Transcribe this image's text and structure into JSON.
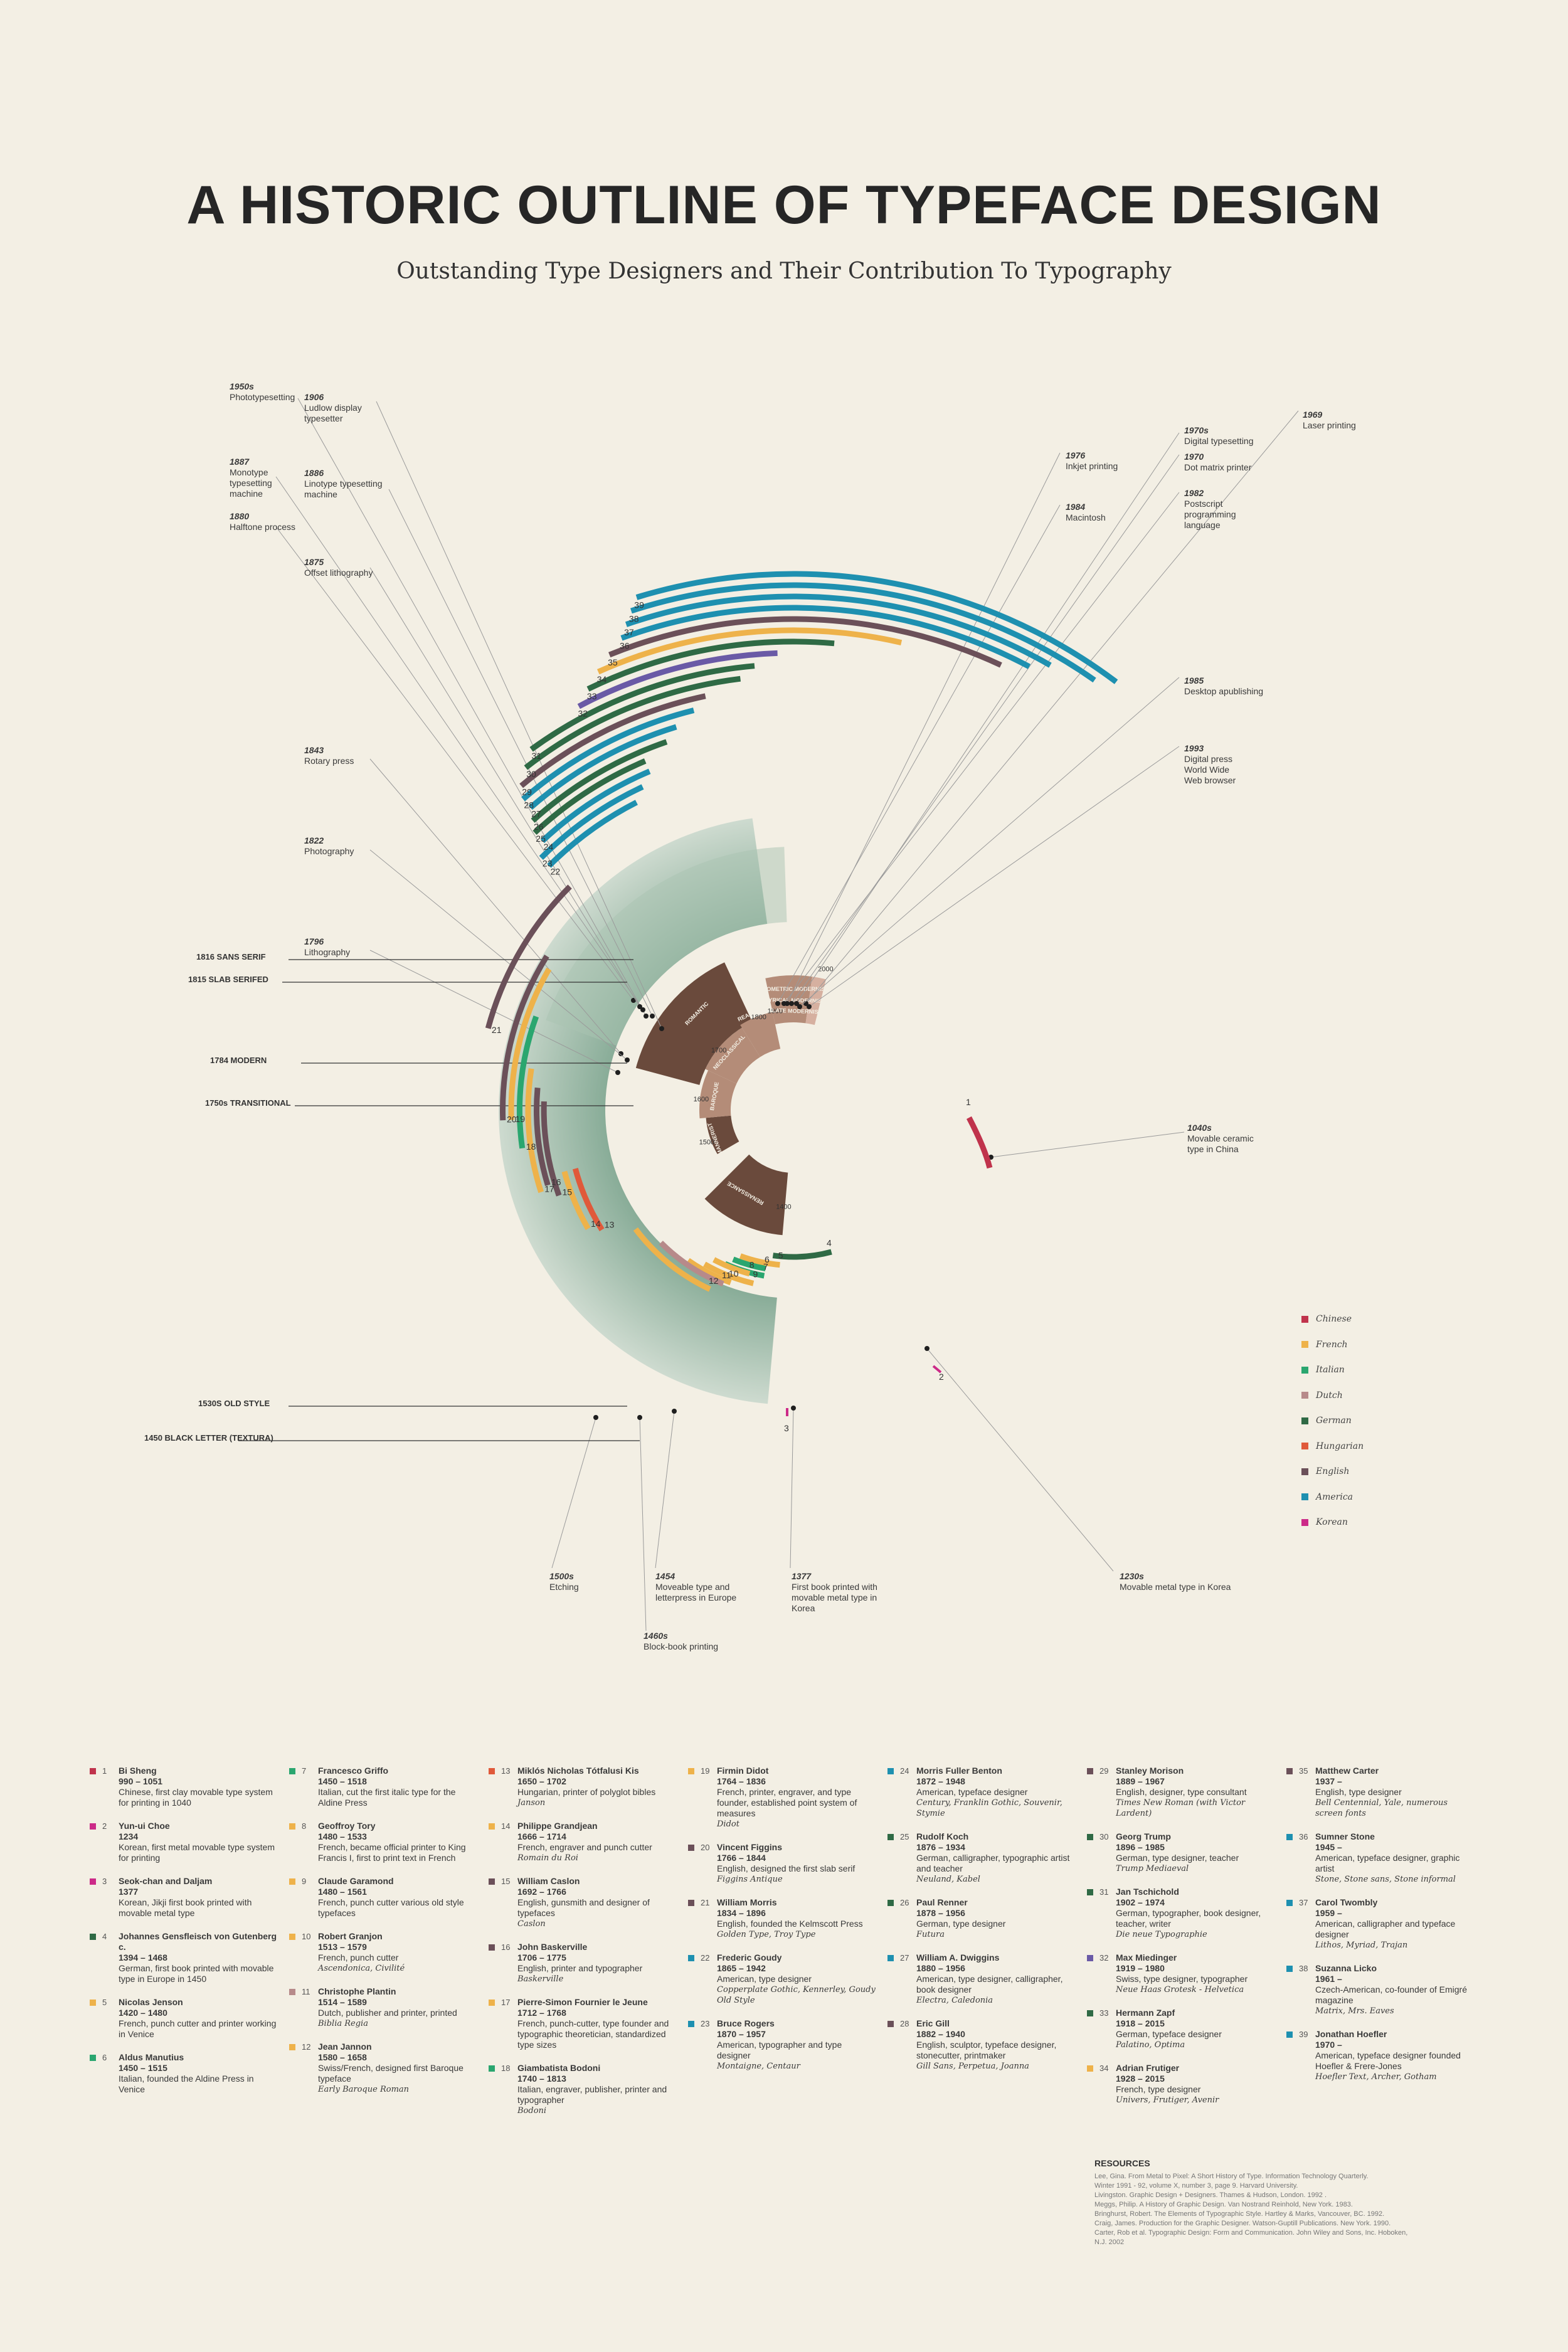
{
  "header": {
    "title": "A HISTORIC OUTLINE OF TYPEFACE DESIGN",
    "subtitle": "Outstanding Type Designers and Their Contribution To Typography"
  },
  "colors": {
    "Chinese": "#c0334c",
    "French": "#eeb24a",
    "Italian": "#2aa66f",
    "Dutch": "#b78a8a",
    "German": "#2f6a45",
    "Hungarian": "#e0593a",
    "English": "#6b5059",
    "America": "#1e90b0",
    "Korean": "#cc2a88"
  },
  "legend": [
    {
      "label": "Chinese",
      "key": "Chinese"
    },
    {
      "label": "French",
      "key": "French"
    },
    {
      "label": "Italian",
      "key": "Italian"
    },
    {
      "label": "Dutch",
      "key": "Dutch"
    },
    {
      "label": "German",
      "key": "German"
    },
    {
      "label": "Hungarian",
      "key": "Hungarian"
    },
    {
      "label": "English",
      "key": "English"
    },
    {
      "label": "America",
      "key": "America"
    },
    {
      "label": "Korean",
      "key": "Korean"
    }
  ],
  "style_labels": [
    "1816 SANS SERIF",
    "1815 SLAB SERIFED",
    "1784 MODERN",
    "1750s TRANSITIONAL",
    "1530S OLD STYLE",
    "1450 BLACK LETTER (TEXTURA)"
  ],
  "periods": [
    "ROMANTIC",
    "REALIST",
    "NEOCLASSICAL",
    "BAROQUE",
    "MANNERIST",
    "RENAISSANCE",
    "GEOMETRIC MODERNIST",
    "LYRICAL MODERNIST",
    "LATE MODERNIST"
  ],
  "years": [
    "2000",
    "1900",
    "1800",
    "1700",
    "1600",
    "1500",
    "1400"
  ],
  "annotations": [
    {
      "year": "1950s",
      "text": "Phototypesetting"
    },
    {
      "year": "1906",
      "text": "Ludlow display typesetter"
    },
    {
      "year": "1887",
      "text": "Monotype typesetting machine"
    },
    {
      "year": "1886",
      "text": "Linotype typesetting machine"
    },
    {
      "year": "1880",
      "text": "Halftone process"
    },
    {
      "year": "1875",
      "text": "Offset lithography"
    },
    {
      "year": "1843",
      "text": "Rotary press"
    },
    {
      "year": "1822",
      "text": "Photography"
    },
    {
      "year": "1796",
      "text": "Lithography"
    },
    {
      "year": "1969",
      "text": "Laser printing"
    },
    {
      "year": "1970s",
      "text": "Digital typesetting"
    },
    {
      "year": "1976",
      "text": "Inkjet printing"
    },
    {
      "year": "1970",
      "text": "Dot matrix printer"
    },
    {
      "year": "1984",
      "text": "Macintosh"
    },
    {
      "year": "1982",
      "text": "Postscript programming language"
    },
    {
      "year": "1985",
      "text": "Desktop apublishing"
    },
    {
      "year": "1993",
      "text": "Digital press World Wide Web browser"
    },
    {
      "year": "1040s",
      "text": "Movable ceramic type in China"
    },
    {
      "year": "1230s",
      "text": "Movable metal type in Korea"
    },
    {
      "year": "1500s",
      "text": "Etching"
    },
    {
      "year": "1454",
      "text": "Moveable type and letterpress in Europe"
    },
    {
      "year": "1377",
      "text": "First book printed with movable metal type in Korea"
    },
    {
      "year": "1460s",
      "text": "Block-book printing"
    }
  ],
  "designers": [
    {
      "n": "1",
      "name": "Bi Sheng",
      "dates": "990 – 1051",
      "desc": "Chinese, first clay movable type system for printing in 1040",
      "works": "",
      "c": "Chinese"
    },
    {
      "n": "2",
      "name": "Yun-ui Choe",
      "dates": "1234",
      "desc": "Korean, first metal movable type system for printing",
      "works": "",
      "c": "Korean"
    },
    {
      "n": "3",
      "name": "Seok-chan and Daljam",
      "dates": "1377",
      "desc": "Korean, Jikji first book printed with movable metal type",
      "works": "",
      "c": "Korean"
    },
    {
      "n": "4",
      "name": "Johannes Gensfleisch von Gutenberg c.",
      "dates": "1394 – 1468",
      "desc": "German, first book printed with movable type in Europe in 1450",
      "works": "",
      "c": "German"
    },
    {
      "n": "5",
      "name": "Nicolas Jenson",
      "dates": "1420 – 1480",
      "desc": "French, punch cutter and printer working in Venice",
      "works": "",
      "c": "French"
    },
    {
      "n": "6",
      "name": "Aldus Manutius",
      "dates": "1450 – 1515",
      "desc": "Italian, founded the Aldine Press in Venice",
      "works": "",
      "c": "Italian"
    },
    {
      "n": "7",
      "name": "Francesco Griffo",
      "dates": "1450 – 1518",
      "desc": "Italian, cut the first italic type for the Aldine Press",
      "works": "",
      "c": "Italian"
    },
    {
      "n": "8",
      "name": "Geoffroy Tory",
      "dates": "1480 – 1533",
      "desc": "French, became official printer to King Francis I, first to print text in French",
      "works": "",
      "c": "French"
    },
    {
      "n": "9",
      "name": "Claude Garamond",
      "dates": "1480 – 1561",
      "desc": "French, punch cutter various old style typefaces",
      "works": "",
      "c": "French"
    },
    {
      "n": "10",
      "name": "Robert Granjon",
      "dates": "1513 – 1579",
      "desc": "French, punch cutter",
      "works": "Ascendonica, Civilité",
      "c": "French"
    },
    {
      "n": "11",
      "name": "Christophe Plantin",
      "dates": "1514 – 1589",
      "desc": "Dutch, publisher and printer, printed",
      "works": "Biblia Regia",
      "c": "Dutch"
    },
    {
      "n": "12",
      "name": "Jean Jannon",
      "dates": "1580 – 1658",
      "desc": "Swiss/French, designed first Baroque typeface",
      "works": "Early Baroque Roman",
      "c": "French"
    },
    {
      "n": "13",
      "name": "Miklós Nicholas Tótfalusi Kis",
      "dates": "1650 – 1702",
      "desc": "Hungarian, printer of polyglot bibles",
      "works": "Janson",
      "c": "Hungarian"
    },
    {
      "n": "14",
      "name": "Philippe Grandjean",
      "dates": "1666 – 1714",
      "desc": "French, engraver and punch cutter",
      "works": "Romain du Roi",
      "c": "French"
    },
    {
      "n": "15",
      "name": "William Caslon",
      "dates": "1692 – 1766",
      "desc": "English, gunsmith and designer of typefaces",
      "works": "Caslon",
      "c": "English"
    },
    {
      "n": "16",
      "name": "John Baskerville",
      "dates": "1706 – 1775",
      "desc": "English, printer and typographer",
      "works": "Baskerville",
      "c": "English"
    },
    {
      "n": "17",
      "name": "Pierre-Simon Fournier le Jeune",
      "dates": "1712 – 1768",
      "desc": "French, punch-cutter, type founder and typographic theoretician, standardized type sizes",
      "works": "",
      "c": "French"
    },
    {
      "n": "18",
      "name": "Giambatista Bodoni",
      "dates": "1740 – 1813",
      "desc": "Italian, engraver, publisher, printer and typographer",
      "works": "Bodoni",
      "c": "Italian"
    },
    {
      "n": "19",
      "name": "Firmin Didot",
      "dates": "1764 – 1836",
      "desc": "French, printer, engraver, and type founder, established point system of measures",
      "works": "Didot",
      "c": "French"
    },
    {
      "n": "20",
      "name": "Vincent Figgins",
      "dates": "1766 – 1844",
      "desc": "English, designed the first slab serif",
      "works": "Figgins Antique",
      "c": "English"
    },
    {
      "n": "21",
      "name": "William Morris",
      "dates": "1834 – 1896",
      "desc": "English, founded the Kelmscott Press",
      "works": "Golden Type, Troy Type",
      "c": "English"
    },
    {
      "n": "22",
      "name": "Frederic Goudy",
      "dates": "1865 – 1942",
      "desc": "American, type designer",
      "works": "Copperplate Gothic, Kennerley, Goudy Old Style",
      "c": "America"
    },
    {
      "n": "23",
      "name": "Bruce Rogers",
      "dates": "1870 – 1957",
      "desc": "American, typographer and type designer",
      "works": "Montaigne, Centaur",
      "c": "America"
    },
    {
      "n": "24",
      "name": "Morris Fuller Benton",
      "dates": "1872 – 1948",
      "desc": "American, typeface designer",
      "works": "Century, Franklin Gothic, Souvenir, Stymie",
      "c": "America"
    },
    {
      "n": "25",
      "name": "Rudolf Koch",
      "dates": "1876 – 1934",
      "desc": "German, calligrapher, typographic artist and teacher",
      "works": "Neuland, Kabel",
      "c": "German"
    },
    {
      "n": "26",
      "name": "Paul Renner",
      "dates": "1878 – 1956",
      "desc": "German, type designer",
      "works": "Futura",
      "c": "German"
    },
    {
      "n": "27",
      "name": "William A. Dwiggins",
      "dates": "1880 – 1956",
      "desc": "American, type designer, calligrapher, book designer",
      "works": "Electra, Caledonia",
      "c": "America"
    },
    {
      "n": "28",
      "name": "Eric Gill",
      "dates": "1882 – 1940",
      "desc": "English, sculptor, typeface designer, stonecutter, printmaker",
      "works": "Gill Sans, Perpetua, Joanna",
      "c": "English"
    },
    {
      "n": "29",
      "name": "Stanley Morison",
      "dates": "1889 – 1967",
      "desc": "English, designer, type consultant",
      "works": "Times New Roman (with Victor Lardent)",
      "c": "English"
    },
    {
      "n": "30",
      "name": "Georg Trump",
      "dates": "1896 – 1985",
      "desc": "German, type designer, teacher",
      "works": "Trump Mediaeval",
      "c": "German"
    },
    {
      "n": "31",
      "name": "Jan Tschichold",
      "dates": "1902 – 1974",
      "desc": "German, typographer, book designer, teacher, writer",
      "works": "Die neue Typographie",
      "c": "German"
    },
    {
      "n": "32",
      "name": "Max Miedinger",
      "dates": "1919 – 1980",
      "desc": "Swiss, type designer, typographer",
      "works": "Neue Haas Grotesk - Helvetica",
      "c": "Swiss"
    },
    {
      "n": "33",
      "name": "Hermann Zapf",
      "dates": "1918 – 2015",
      "desc": "German, typeface designer",
      "works": "Palatino, Optima",
      "c": "German"
    },
    {
      "n": "34",
      "name": "Adrian Frutiger",
      "dates": "1928 – 2015",
      "desc": "French, type designer",
      "works": "Univers, Frutiger, Avenir",
      "c": "French"
    },
    {
      "n": "35",
      "name": "Matthew Carter",
      "dates": "1937 –",
      "desc": "English, type designer",
      "works": "Bell Centennial, Yale, numerous screen fonts",
      "c": "English"
    },
    {
      "n": "36",
      "name": "Sumner Stone",
      "dates": "1945 –",
      "desc": "American, typeface designer, graphic artist",
      "works": "Stone, Stone sans, Stone informal",
      "c": "America"
    },
    {
      "n": "37",
      "name": "Carol Twombly",
      "dates": "1959 –",
      "desc": "American, calligrapher and typeface designer",
      "works": "Lithos, Myriad, Trajan",
      "c": "America"
    },
    {
      "n": "38",
      "name": "Suzanna Licko",
      "dates": "1961 –",
      "desc": "Czech-American, co-founder of Emigré magazine",
      "works": "Matrix, Mrs. Eaves",
      "c": "America"
    },
    {
      "n": "39",
      "name": "Jonathan Hoefler",
      "dates": "1970 –",
      "desc": "American, typeface designer founded Hoefler & Frere-Jones",
      "works": "Hoefler Text, Archer, Gotham",
      "c": "America"
    }
  ],
  "resources": {
    "heading": "RESOURCES",
    "lines": [
      "Lee, Gina. From Metal to Pixel: A Short History of Type. Information Technology Quarterly.",
      "Winter 1991 - 92, volume X, number 3, page 9. Harvard University.",
      "Livingston. Graphic Design + Designers. Thames & Hudson, London. 1992 .",
      "Meggs, Philip. A History of Graphic Design. Van Nostrand Reinhold, New York. 1983.",
      "Bringhurst, Robert. The Elements of Typographic Style. Hartley & Marks, Vancouver, BC. 1992.",
      "Craig, James. Production for the Graphic Designer. Watson-Guptill Publications. New York. 1990.",
      "Carter, Rob et al. Typographic Design: Form and Communication. John Wiley and Sons, Inc. Hoboken, N.J. 2002"
    ]
  }
}
